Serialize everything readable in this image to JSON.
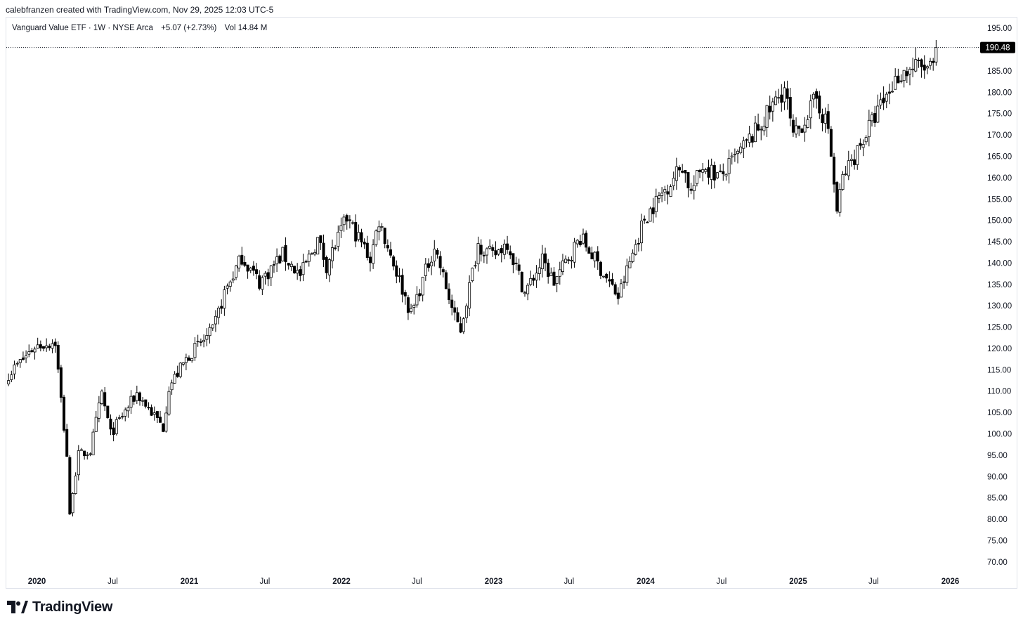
{
  "header": {
    "caption": "calebfranzen created with TradingView.com, Nov 29, 2025 12:03 UTC-5"
  },
  "legend": {
    "symbol": "Vanguard Value ETF · 1W · NYSE Arca",
    "change": "+5.07 (+2.73%)",
    "volume": "Vol 14.84 M"
  },
  "price_tag": "190.48",
  "brand": {
    "name": "TradingView",
    "logo_icon": "tradingview-logo-icon"
  },
  "colors": {
    "candle_up_body": "#ffffff",
    "candle_down_body": "#000000",
    "candle_outline": "#000000",
    "price_line": "#131722",
    "price_tag_bg": "#000000",
    "price_tag_text": "#ffffff",
    "axis_text": "#131722"
  },
  "chart_data": {
    "type": "candlestick",
    "timeframe": "1W",
    "last_price": 190.48,
    "y_axis": {
      "min": 67.5,
      "max": 197.5,
      "ticks": [
        195.0,
        190.0,
        185.0,
        180.0,
        175.0,
        170.0,
        165.0,
        160.0,
        155.0,
        150.0,
        145.0,
        140.0,
        135.0,
        130.0,
        125.0,
        120.0,
        115.0,
        110.0,
        105.0,
        100.0,
        95.0,
        90.0,
        85.0,
        80.0,
        75.0,
        70.0
      ],
      "tick_labels": [
        "195.00",
        "190.00",
        "185.00",
        "180.00",
        "175.00",
        "170.00",
        "165.00",
        "160.00",
        "155.00",
        "150.00",
        "145.00",
        "140.00",
        "135.00",
        "130.00",
        "125.00",
        "120.00",
        "115.00",
        "110.00",
        "105.00",
        "100.00",
        "95.00",
        "90.00",
        "85.00",
        "80.00",
        "75.00",
        "70.00"
      ]
    },
    "x_axis": {
      "labels": [
        {
          "text": "2020",
          "date": "2020-01-01",
          "bold": true
        },
        {
          "text": "Jul",
          "date": "2020-07-01",
          "bold": false
        },
        {
          "text": "2021",
          "date": "2021-01-01",
          "bold": true
        },
        {
          "text": "Jul",
          "date": "2021-07-01",
          "bold": false
        },
        {
          "text": "2022",
          "date": "2022-01-01",
          "bold": true
        },
        {
          "text": "Jul",
          "date": "2022-07-01",
          "bold": false
        },
        {
          "text": "2023",
          "date": "2023-01-01",
          "bold": true
        },
        {
          "text": "Jul",
          "date": "2023-07-01",
          "bold": false
        },
        {
          "text": "2024",
          "date": "2024-01-01",
          "bold": true
        },
        {
          "text": "Jul",
          "date": "2024-07-01",
          "bold": false
        },
        {
          "text": "2025",
          "date": "2025-01-01",
          "bold": true
        },
        {
          "text": "Jul",
          "date": "2025-07-01",
          "bold": false
        },
        {
          "text": "2026",
          "date": "2026-01-01",
          "bold": true
        }
      ]
    },
    "series_anchors": [
      {
        "date": "2019-10-25",
        "close": 114.0
      },
      {
        "date": "2019-11-29",
        "close": 117.5
      },
      {
        "date": "2019-12-27",
        "close": 120.5
      },
      {
        "date": "2020-01-17",
        "close": 121.0
      },
      {
        "date": "2020-02-14",
        "close": 121.5
      },
      {
        "date": "2020-02-28",
        "close": 108.0
      },
      {
        "date": "2020-03-13",
        "close": 95.0
      },
      {
        "date": "2020-03-20",
        "close": 80.5
      },
      {
        "date": "2020-03-27",
        "close": 87.0
      },
      {
        "date": "2020-04-10",
        "close": 95.0
      },
      {
        "date": "2020-05-08",
        "close": 96.0
      },
      {
        "date": "2020-06-05",
        "close": 109.5
      },
      {
        "date": "2020-06-26",
        "close": 100.0
      },
      {
        "date": "2020-08-28",
        "close": 109.5
      },
      {
        "date": "2020-10-30",
        "close": 101.5
      },
      {
        "date": "2020-11-13",
        "close": 111.0
      },
      {
        "date": "2020-12-31",
        "close": 118.5
      },
      {
        "date": "2021-02-26",
        "close": 124.0
      },
      {
        "date": "2021-03-26",
        "close": 133.0
      },
      {
        "date": "2021-05-07",
        "close": 141.5
      },
      {
        "date": "2021-06-18",
        "close": 135.5
      },
      {
        "date": "2021-08-13",
        "close": 142.0
      },
      {
        "date": "2021-09-24",
        "close": 137.0
      },
      {
        "date": "2021-11-05",
        "close": 145.5
      },
      {
        "date": "2021-11-26",
        "close": 139.5
      },
      {
        "date": "2022-01-14",
        "close": 150.5
      },
      {
        "date": "2022-02-25",
        "close": 143.5
      },
      {
        "date": "2022-03-11",
        "close": 141.0
      },
      {
        "date": "2022-04-01",
        "close": 150.0
      },
      {
        "date": "2022-05-13",
        "close": 138.0
      },
      {
        "date": "2022-06-17",
        "close": 128.0
      },
      {
        "date": "2022-08-12",
        "close": 144.0
      },
      {
        "date": "2022-09-30",
        "close": 127.0
      },
      {
        "date": "2022-10-14",
        "close": 124.5
      },
      {
        "date": "2022-11-25",
        "close": 144.5
      },
      {
        "date": "2022-12-30",
        "close": 141.5
      },
      {
        "date": "2023-02-03",
        "close": 145.0
      },
      {
        "date": "2023-03-17",
        "close": 133.0
      },
      {
        "date": "2023-04-28",
        "close": 140.5
      },
      {
        "date": "2023-05-26",
        "close": 135.5
      },
      {
        "date": "2023-07-28",
        "close": 146.0
      },
      {
        "date": "2023-08-25",
        "close": 142.0
      },
      {
        "date": "2023-10-27",
        "close": 132.0
      },
      {
        "date": "2023-12-29",
        "close": 150.5
      },
      {
        "date": "2024-03-29",
        "close": 163.0
      },
      {
        "date": "2024-04-19",
        "close": 156.5
      },
      {
        "date": "2024-05-17",
        "close": 163.0
      },
      {
        "date": "2024-06-28",
        "close": 160.0
      },
      {
        "date": "2024-09-27",
        "close": 171.5
      },
      {
        "date": "2024-11-29",
        "close": 181.0
      },
      {
        "date": "2024-12-20",
        "close": 169.0
      },
      {
        "date": "2025-02-14",
        "close": 178.5
      },
      {
        "date": "2025-03-14",
        "close": 171.5
      },
      {
        "date": "2025-04-04",
        "close": 152.0
      },
      {
        "date": "2025-04-18",
        "close": 160.0
      },
      {
        "date": "2025-06-27",
        "close": 173.0
      },
      {
        "date": "2025-08-29",
        "close": 184.0
      },
      {
        "date": "2025-10-10",
        "close": 186.0
      },
      {
        "date": "2025-11-21",
        "close": 185.4
      },
      {
        "date": "2025-11-28",
        "close": 190.48
      }
    ]
  }
}
